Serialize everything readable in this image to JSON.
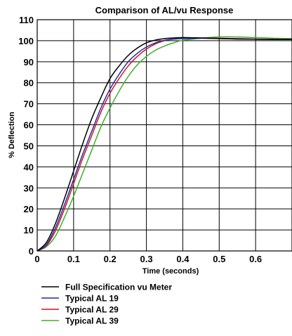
{
  "chart_data": {
    "type": "line",
    "title": "Comparison of AL/vu Response",
    "xlabel": "Time (seconds)",
    "ylabel": "% Deflection",
    "xlim": [
      0,
      0.7
    ],
    "ylim": [
      0,
      110
    ],
    "xticks": [
      "0",
      "0.1",
      "0.2",
      "0.3",
      "0.4",
      "0.5",
      "0.6"
    ],
    "yticks": [
      "0",
      "10",
      "20",
      "30",
      "40",
      "50",
      "60",
      "70",
      "80",
      "90",
      "100",
      "110"
    ],
    "grid": true,
    "legend_position": "bottom",
    "series": [
      {
        "name": "Full Specification vu Meter",
        "color": "#000000",
        "x": [
          0,
          0.025,
          0.05,
          0.075,
          0.1,
          0.125,
          0.15,
          0.175,
          0.2,
          0.225,
          0.25,
          0.275,
          0.3,
          0.325,
          0.35,
          0.375,
          0.4,
          0.45,
          0.5,
          0.55,
          0.6,
          0.65,
          0.7
        ],
        "y": [
          0,
          4,
          13,
          25,
          38,
          51,
          63,
          73,
          82,
          88,
          93,
          96.5,
          99,
          100.3,
          101,
          101.3,
          101.5,
          101.3,
          101,
          100.8,
          100.7,
          100.6,
          100.6
        ]
      },
      {
        "name": "Typical AL 19",
        "color": "#1f2aa8",
        "x": [
          0,
          0.025,
          0.05,
          0.075,
          0.1,
          0.125,
          0.15,
          0.175,
          0.2,
          0.225,
          0.25,
          0.275,
          0.3,
          0.325,
          0.35,
          0.375,
          0.4,
          0.45,
          0.5,
          0.55,
          0.6,
          0.65,
          0.7
        ],
        "y": [
          0,
          3,
          11,
          22,
          34,
          46,
          57,
          68,
          77,
          84,
          90,
          94,
          97,
          99,
          100.2,
          100.8,
          101,
          101.2,
          101,
          100.8,
          100.7,
          100.6,
          100.6
        ]
      },
      {
        "name": "Typical AL 29",
        "color": "#d1141e",
        "x": [
          0,
          0.025,
          0.05,
          0.075,
          0.1,
          0.125,
          0.15,
          0.175,
          0.2,
          0.225,
          0.25,
          0.275,
          0.3,
          0.325,
          0.35,
          0.375,
          0.4,
          0.45,
          0.5,
          0.55,
          0.6,
          0.65,
          0.7
        ],
        "y": [
          0,
          2.5,
          9.5,
          20,
          32,
          44,
          55,
          66,
          75,
          82,
          88,
          92.5,
          96,
          98.5,
          100,
          100.8,
          101,
          101.3,
          101.2,
          101,
          100.8,
          100.7,
          100.6
        ]
      },
      {
        "name": "Typical AL 39",
        "color": "#3cb02a",
        "x": [
          0,
          0.025,
          0.05,
          0.075,
          0.1,
          0.125,
          0.15,
          0.175,
          0.2,
          0.225,
          0.25,
          0.275,
          0.3,
          0.325,
          0.35,
          0.375,
          0.4,
          0.45,
          0.5,
          0.55,
          0.6,
          0.65,
          0.7
        ],
        "y": [
          0,
          2,
          7,
          16,
          26,
          37,
          48,
          59,
          68,
          76,
          83,
          88.5,
          92.5,
          95.5,
          97.5,
          99,
          100.2,
          101.2,
          101.8,
          101.8,
          101.5,
          101.2,
          101
        ]
      }
    ]
  }
}
